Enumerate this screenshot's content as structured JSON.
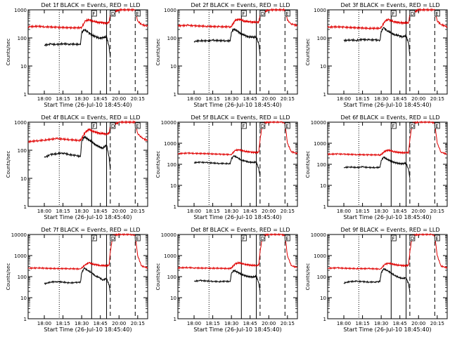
{
  "colors": {
    "events": "#000000",
    "lld": "#e00000",
    "axes": "#000000",
    "background": "#ffffff"
  },
  "common": {
    "ylabel": "Counts/sec",
    "xlabel": "Start Time (26-Jul-10 18:45:40)",
    "x_ticks": [
      "18:00",
      "18:15",
      "18:30",
      "18:45",
      "20:00",
      "20:15"
    ],
    "x_tick_positions_min": [
      0,
      15,
      30,
      45,
      60,
      75
    ],
    "markers": {
      "F": 38,
      "D": 53,
      "E": 73
    },
    "vlines": {
      "dotted": 12,
      "solid": [
        38,
        50
      ],
      "dashed": [
        53,
        73
      ]
    }
  },
  "chart_data": [
    {
      "type": "line",
      "title": "Det 1f BLACK = Events, RED = LLD",
      "ylim": [
        1,
        1000
      ],
      "yscale": "log",
      "y_ticks": [
        "1",
        "10",
        "100",
        "1000"
      ],
      "x_range": [
        -13,
        83
      ],
      "series": [
        {
          "name": "Events",
          "color": "#000000",
          "x": [
            0,
            5,
            10,
            15,
            20,
            25,
            29,
            30,
            32,
            35,
            38,
            41,
            44,
            47,
            50,
            52,
            53
          ],
          "y": [
            55,
            60,
            58,
            62,
            60,
            60,
            58,
            150,
            200,
            160,
            130,
            110,
            100,
            100,
            110,
            50,
            20
          ]
        },
        {
          "name": "LLD",
          "color": "#e00000",
          "x": [
            -13,
            -5,
            0,
            10,
            20,
            29,
            30,
            33,
            36,
            40,
            45,
            50,
            52,
            53,
            60,
            73,
            75,
            78,
            83
          ],
          "y": [
            250,
            260,
            250,
            240,
            230,
            230,
            240,
            400,
            450,
            380,
            350,
            340,
            350,
            700,
            1000,
            1000,
            400,
            300,
            260
          ]
        }
      ]
    },
    {
      "type": "line",
      "title": "Det 2f BLACK = Events, RED = LLD",
      "ylim": [
        1,
        1000
      ],
      "yscale": "log",
      "y_ticks": [
        "1",
        "10",
        "100",
        "1000"
      ],
      "x_range": [
        -13,
        83
      ],
      "series": [
        {
          "name": "Events",
          "color": "#000000",
          "x": [
            0,
            5,
            10,
            15,
            20,
            25,
            29,
            30,
            32,
            35,
            38,
            41,
            44,
            47,
            50,
            52,
            53
          ],
          "y": [
            75,
            80,
            78,
            82,
            80,
            80,
            78,
            160,
            210,
            170,
            140,
            120,
            110,
            105,
            110,
            60,
            25
          ]
        },
        {
          "name": "LLD",
          "color": "#e00000",
          "x": [
            -13,
            -5,
            0,
            10,
            20,
            29,
            30,
            33,
            36,
            40,
            45,
            50,
            52,
            53,
            60,
            73,
            75,
            78,
            83
          ],
          "y": [
            270,
            280,
            270,
            260,
            250,
            250,
            260,
            420,
            470,
            400,
            370,
            360,
            370,
            700,
            1000,
            1000,
            420,
            320,
            270
          ]
        }
      ]
    },
    {
      "type": "line",
      "title": "Det 3f BLACK = Events, RED = LLD",
      "ylim": [
        1,
        1000
      ],
      "yscale": "log",
      "y_ticks": [
        "1",
        "10",
        "100",
        "1000"
      ],
      "x_range": [
        -13,
        83
      ],
      "series": [
        {
          "name": "Events",
          "color": "#000000",
          "x": [
            0,
            5,
            10,
            15,
            20,
            25,
            29,
            30,
            32,
            35,
            38,
            41,
            44,
            47,
            50,
            52,
            53
          ],
          "y": [
            80,
            85,
            82,
            88,
            85,
            85,
            82,
            170,
            230,
            180,
            150,
            130,
            120,
            110,
            120,
            65,
            25
          ]
        },
        {
          "name": "LLD",
          "color": "#e00000",
          "x": [
            -13,
            -5,
            0,
            10,
            20,
            29,
            30,
            33,
            36,
            40,
            45,
            50,
            52,
            53,
            60,
            73,
            75,
            78,
            83
          ],
          "y": [
            240,
            250,
            240,
            230,
            220,
            220,
            230,
            400,
            450,
            380,
            350,
            340,
            350,
            700,
            1000,
            1000,
            400,
            300,
            250
          ]
        }
      ]
    },
    {
      "type": "line",
      "title": "Det 4f BLACK = Events, RED = LLD",
      "ylim": [
        1,
        1000
      ],
      "yscale": "log",
      "y_ticks": [
        "1",
        "10",
        "100",
        "1000"
      ],
      "x_range": [
        -13,
        83
      ],
      "series": [
        {
          "name": "Events",
          "color": "#000000",
          "x": [
            0,
            5,
            10,
            15,
            20,
            25,
            29,
            30,
            32,
            35,
            38,
            41,
            44,
            47,
            50,
            52,
            53
          ],
          "y": [
            55,
            70,
            75,
            80,
            70,
            65,
            60,
            200,
            300,
            250,
            200,
            160,
            130,
            120,
            150,
            60,
            20
          ]
        },
        {
          "name": "LLD",
          "color": "#e00000",
          "x": [
            -13,
            -5,
            0,
            10,
            20,
            29,
            30,
            33,
            36,
            40,
            45,
            50,
            52,
            53,
            60,
            73,
            75,
            78,
            83
          ],
          "y": [
            200,
            220,
            230,
            260,
            240,
            220,
            260,
            450,
            550,
            450,
            400,
            380,
            400,
            700,
            1000,
            1000,
            400,
            280,
            220
          ]
        }
      ]
    },
    {
      "type": "line",
      "title": "Det 5f BLACK = Events, RED = LLD",
      "ylim": [
        1,
        10000
      ],
      "yscale": "log",
      "y_ticks": [
        "1",
        "10",
        "100",
        "1000",
        "10000"
      ],
      "x_range": [
        -13,
        83
      ],
      "series": [
        {
          "name": "Events",
          "color": "#000000",
          "x": [
            0,
            5,
            10,
            15,
            20,
            25,
            29,
            30,
            32,
            35,
            38,
            41,
            44,
            47,
            50,
            52,
            53
          ],
          "y": [
            120,
            125,
            120,
            115,
            110,
            110,
            105,
            180,
            260,
            200,
            160,
            140,
            130,
            120,
            130,
            60,
            25
          ]
        },
        {
          "name": "LLD",
          "color": "#e00000",
          "x": [
            -13,
            -5,
            0,
            10,
            20,
            29,
            30,
            33,
            36,
            40,
            45,
            50,
            52,
            53,
            55,
            60,
            70,
            73,
            75,
            78,
            83
          ],
          "y": [
            320,
            340,
            330,
            320,
            300,
            290,
            300,
            450,
            500,
            420,
            380,
            360,
            380,
            1500,
            9000,
            10000,
            10000,
            9000,
            1000,
            400,
            320
          ]
        }
      ]
    },
    {
      "type": "line",
      "title": "Det 6f BLACK = Events, RED = LLD",
      "ylim": [
        1,
        10000
      ],
      "yscale": "log",
      "y_ticks": [
        "1",
        "10",
        "100",
        "1000",
        "10000"
      ],
      "x_range": [
        -13,
        83
      ],
      "series": [
        {
          "name": "Events",
          "color": "#000000",
          "x": [
            0,
            5,
            10,
            15,
            20,
            25,
            29,
            30,
            32,
            35,
            38,
            41,
            44,
            47,
            50,
            52,
            53
          ],
          "y": [
            70,
            75,
            70,
            75,
            70,
            70,
            72,
            150,
            220,
            170,
            140,
            120,
            110,
            105,
            115,
            55,
            22
          ]
        },
        {
          "name": "LLD",
          "color": "#e00000",
          "x": [
            -13,
            -5,
            0,
            10,
            20,
            29,
            30,
            33,
            36,
            40,
            45,
            50,
            52,
            53,
            55,
            60,
            70,
            73,
            75,
            78,
            83
          ],
          "y": [
            300,
            310,
            300,
            290,
            280,
            280,
            290,
            420,
            470,
            400,
            360,
            350,
            360,
            1500,
            9000,
            10000,
            10000,
            9000,
            1000,
            380,
            300
          ]
        }
      ]
    },
    {
      "type": "line",
      "title": "Det 7f BLACK = Events, RED = LLD",
      "ylim": [
        1,
        10000
      ],
      "yscale": "log",
      "y_ticks": [
        "1",
        "10",
        "100",
        "1000",
        "10000"
      ],
      "x_range": [
        -13,
        83
      ],
      "series": [
        {
          "name": "Events",
          "color": "#000000",
          "x": [
            0,
            5,
            10,
            15,
            20,
            25,
            29,
            30,
            32,
            35,
            38,
            41,
            44,
            47,
            50,
            52,
            53
          ],
          "y": [
            45,
            55,
            58,
            55,
            50,
            52,
            55,
            150,
            250,
            200,
            150,
            110,
            90,
            70,
            80,
            40,
            18
          ]
        },
        {
          "name": "LLD",
          "color": "#e00000",
          "x": [
            -13,
            -5,
            0,
            10,
            20,
            29,
            30,
            33,
            36,
            40,
            45,
            50,
            52,
            53,
            55,
            60,
            70,
            73,
            75,
            78,
            83
          ],
          "y": [
            250,
            260,
            250,
            240,
            240,
            230,
            250,
            380,
            450,
            380,
            340,
            330,
            350,
            1500,
            9000,
            10000,
            10000,
            9000,
            1000,
            320,
            260
          ]
        }
      ]
    },
    {
      "type": "line",
      "title": "Det 8f BLACK = Events, RED = LLD",
      "ylim": [
        1,
        10000
      ],
      "yscale": "log",
      "y_ticks": [
        "1",
        "10",
        "100",
        "1000",
        "10000"
      ],
      "x_range": [
        -13,
        83
      ],
      "series": [
        {
          "name": "Events",
          "color": "#000000",
          "x": [
            0,
            5,
            10,
            15,
            20,
            25,
            29,
            30,
            32,
            35,
            38,
            41,
            44,
            47,
            50,
            52,
            53
          ],
          "y": [
            60,
            65,
            62,
            60,
            58,
            60,
            58,
            140,
            200,
            160,
            130,
            110,
            100,
            95,
            105,
            50,
            20
          ]
        },
        {
          "name": "LLD",
          "color": "#e00000",
          "x": [
            -13,
            -5,
            0,
            10,
            20,
            29,
            30,
            33,
            36,
            40,
            45,
            50,
            52,
            53,
            55,
            60,
            70,
            73,
            75,
            78,
            83
          ],
          "y": [
            260,
            270,
            260,
            250,
            250,
            240,
            260,
            400,
            460,
            390,
            350,
            340,
            360,
            1500,
            9000,
            10000,
            10000,
            9000,
            1000,
            330,
            270
          ]
        }
      ]
    },
    {
      "type": "line",
      "title": "Det 9f BLACK = Events, RED = LLD",
      "ylim": [
        1,
        10000
      ],
      "yscale": "log",
      "y_ticks": [
        "1",
        "10",
        "100",
        "1000",
        "10000"
      ],
      "x_range": [
        -13,
        83
      ],
      "series": [
        {
          "name": "Events",
          "color": "#000000",
          "x": [
            0,
            5,
            10,
            15,
            20,
            25,
            29,
            30,
            32,
            35,
            38,
            41,
            44,
            47,
            50,
            52,
            53
          ],
          "y": [
            50,
            58,
            60,
            58,
            55,
            56,
            58,
            150,
            240,
            190,
            150,
            110,
            95,
            80,
            90,
            45,
            18
          ]
        },
        {
          "name": "LLD",
          "color": "#e00000",
          "x": [
            -13,
            -5,
            0,
            10,
            20,
            29,
            30,
            33,
            36,
            40,
            45,
            50,
            52,
            53,
            55,
            60,
            70,
            73,
            75,
            78,
            83
          ],
          "y": [
            250,
            260,
            250,
            240,
            240,
            230,
            250,
            380,
            440,
            380,
            340,
            330,
            350,
            1500,
            9000,
            10000,
            10000,
            9000,
            1000,
            320,
            260
          ]
        }
      ]
    }
  ]
}
